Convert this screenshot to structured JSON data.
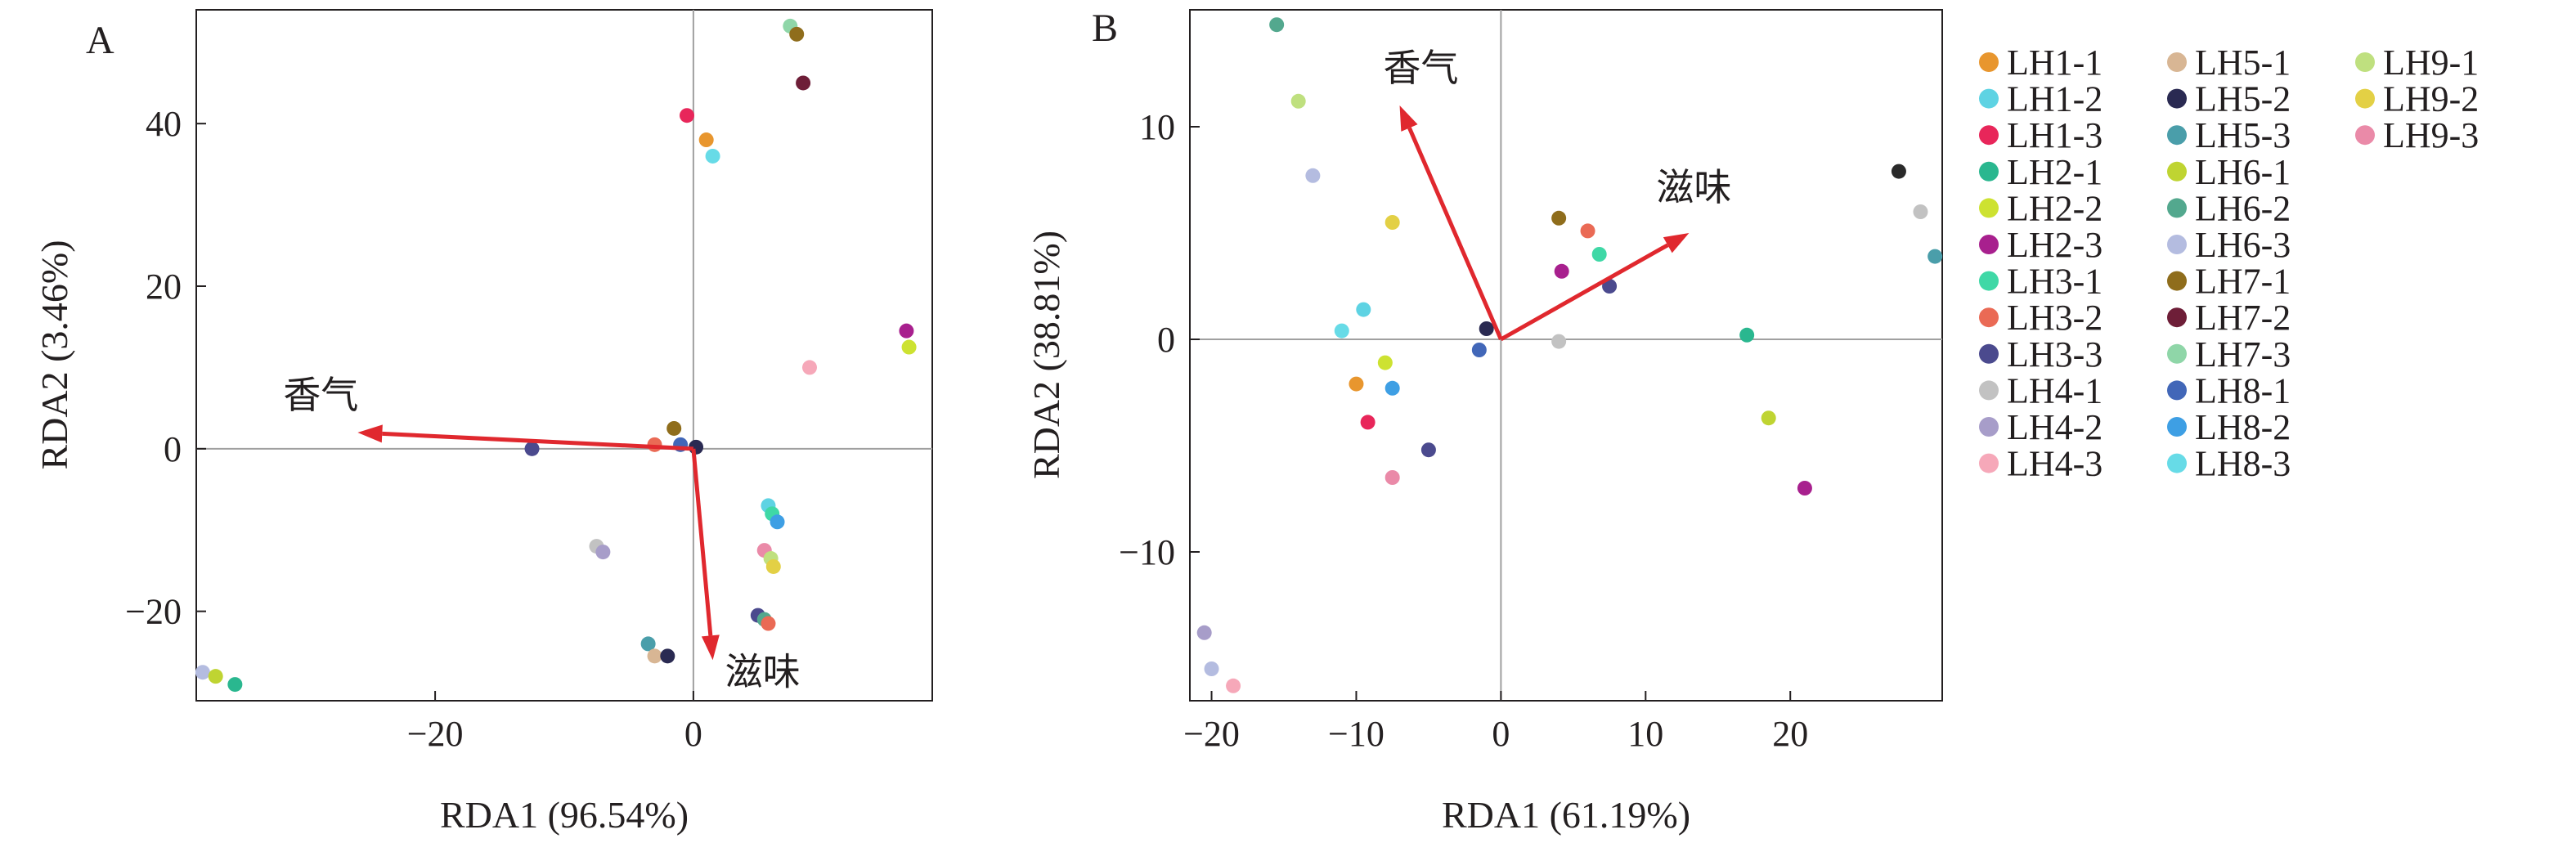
{
  "legend": {
    "items": [
      {
        "label": "LH1-1",
        "color": "#e8962e"
      },
      {
        "label": "LH1-2",
        "color": "#5ed3e3"
      },
      {
        "label": "LH1-3",
        "color": "#e8265a"
      },
      {
        "label": "LH2-1",
        "color": "#2ab78f"
      },
      {
        "label": "LH2-2",
        "color": "#cde231"
      },
      {
        "label": "LH2-3",
        "color": "#a8208e"
      },
      {
        "label": "LH3-1",
        "color": "#3fd8a6"
      },
      {
        "label": "LH3-2",
        "color": "#ea6a55"
      },
      {
        "label": "LH3-3",
        "color": "#4b4a8e"
      },
      {
        "label": "LH4-1",
        "color": "#c2c2c2"
      },
      {
        "label": "LH4-2",
        "color": "#a79dc9"
      },
      {
        "label": "LH4-3",
        "color": "#f6a8b9"
      },
      {
        "label": "LH5-1",
        "color": "#d8b694"
      },
      {
        "label": "LH5-2",
        "color": "#2a2a52"
      },
      {
        "label": "LH5-3",
        "color": "#4a9eaa"
      },
      {
        "label": "LH6-1",
        "color": "#bfd432"
      },
      {
        "label": "LH6-2",
        "color": "#53a88e"
      },
      {
        "label": "LH6-3",
        "color": "#b4bce0"
      },
      {
        "label": "LH7-1",
        "color": "#8f6d1c"
      },
      {
        "label": "LH7-2",
        "color": "#6e1e38"
      },
      {
        "label": "LH7-3",
        "color": "#8fd6a8"
      },
      {
        "label": "LH8-1",
        "color": "#4267b8"
      },
      {
        "label": "LH8-2",
        "color": "#3e9fe4"
      },
      {
        "label": "LH8-3",
        "color": "#67dbe7"
      },
      {
        "label": "LH9-1",
        "color": "#bfe07f"
      },
      {
        "label": "LH9-2",
        "color": "#e3d045"
      },
      {
        "label": "LH9-3",
        "color": "#ea8aa8"
      }
    ]
  },
  "chart_data": [
    {
      "type": "scatter",
      "panel_label": "A",
      "xlabel": "RDA1 (96.54%)",
      "ylabel": "RDA2 (3.46%)",
      "xlim": [
        -38.5,
        18.5
      ],
      "ylim": [
        -31,
        54
      ],
      "xticks": [
        -20,
        0
      ],
      "xtick_labels": [
        "−20",
        "0"
      ],
      "yticks": [
        -20,
        0,
        20,
        40
      ],
      "ytick_labels": [
        "−20",
        "0",
        "20",
        "40"
      ],
      "vectors": [
        {
          "label": "香气",
          "x": -26,
          "y": 2
        },
        {
          "label": "滋味",
          "x": 1.5,
          "y": -26
        }
      ],
      "points": [
        {
          "x": 7.5,
          "y": 52,
          "color": "#8fd6a8"
        },
        {
          "x": 8.0,
          "y": 51,
          "color": "#8f6d1c"
        },
        {
          "x": 8.5,
          "y": 45,
          "color": "#6e1e38"
        },
        {
          "x": -0.5,
          "y": 41,
          "color": "#e8265a"
        },
        {
          "x": 1.0,
          "y": 38,
          "color": "#e8962e"
        },
        {
          "x": 1.5,
          "y": 36,
          "color": "#67dbe7"
        },
        {
          "x": 16.5,
          "y": 14.5,
          "color": "#a8208e"
        },
        {
          "x": 16.7,
          "y": 12.5,
          "color": "#cde231"
        },
        {
          "x": 9.0,
          "y": 10,
          "color": "#f6a8b9"
        },
        {
          "x": -1.5,
          "y": 2.5,
          "color": "#8f6d1c"
        },
        {
          "x": -12.5,
          "y": 0,
          "color": "#4b4a8e"
        },
        {
          "x": -3.0,
          "y": 0.5,
          "color": "#ea6a55"
        },
        {
          "x": -1.0,
          "y": 0.5,
          "color": "#4267b8"
        },
        {
          "x": 0.2,
          "y": 0.2,
          "color": "#2a2a52"
        },
        {
          "x": 5.8,
          "y": -7,
          "color": "#5ed3e3"
        },
        {
          "x": 6.1,
          "y": -8,
          "color": "#3fd8a6"
        },
        {
          "x": 6.5,
          "y": -9,
          "color": "#3e9fe4"
        },
        {
          "x": 5.5,
          "y": -12.5,
          "color": "#ea8aa8"
        },
        {
          "x": 6.0,
          "y": -13.5,
          "color": "#bfe07f"
        },
        {
          "x": 6.2,
          "y": -14.5,
          "color": "#e3d045"
        },
        {
          "x": -7.5,
          "y": -12,
          "color": "#c2c2c2"
        },
        {
          "x": -7.0,
          "y": -12.7,
          "color": "#a79dc9"
        },
        {
          "x": 5.0,
          "y": -20.5,
          "color": "#4b4a8e"
        },
        {
          "x": 5.5,
          "y": -21,
          "color": "#53a88e"
        },
        {
          "x": 5.8,
          "y": -21.5,
          "color": "#ea6a55"
        },
        {
          "x": -3.5,
          "y": -24,
          "color": "#4a9eaa"
        },
        {
          "x": -3.0,
          "y": -25.5,
          "color": "#d8b694"
        },
        {
          "x": -2.0,
          "y": -25.5,
          "color": "#2a2a52"
        },
        {
          "x": -38.0,
          "y": -27.5,
          "color": "#b4bce0"
        },
        {
          "x": -37.0,
          "y": -28,
          "color": "#bfd432"
        },
        {
          "x": -35.5,
          "y": -29,
          "color": "#2ab78f"
        }
      ]
    },
    {
      "type": "scatter",
      "panel_label": "B",
      "xlabel": "RDA1 (61.19%)",
      "ylabel": "RDA2 (38.81%)",
      "xlim": [
        -21.5,
        30.5
      ],
      "ylim": [
        -17,
        15.5
      ],
      "xticks": [
        -20,
        -10,
        0,
        10,
        20
      ],
      "xtick_labels": [
        "−20",
        "−10",
        "0",
        "10",
        "20"
      ],
      "yticks": [
        -10,
        0,
        10
      ],
      "ytick_labels": [
        "−10",
        "0",
        "10"
      ],
      "vectors": [
        {
          "label": "香气",
          "x": -7,
          "y": 11
        },
        {
          "label": "滋味",
          "x": 13,
          "y": 5
        }
      ],
      "points": [
        {
          "x": -15.5,
          "y": 14.8,
          "color": "#53a88e"
        },
        {
          "x": -14.0,
          "y": 11.2,
          "color": "#bfe07f"
        },
        {
          "x": -13.0,
          "y": 7.7,
          "color": "#b4bce0"
        },
        {
          "x": -7.5,
          "y": 5.5,
          "color": "#e3d045"
        },
        {
          "x": -9.5,
          "y": 1.4,
          "color": "#5ed3e3"
        },
        {
          "x": -11.0,
          "y": 0.4,
          "color": "#67dbe7"
        },
        {
          "x": -8.0,
          "y": -1.1,
          "color": "#cde231"
        },
        {
          "x": -10.0,
          "y": -2.1,
          "color": "#e8962e"
        },
        {
          "x": -7.5,
          "y": -2.3,
          "color": "#3e9fe4"
        },
        {
          "x": -9.2,
          "y": -3.9,
          "color": "#e8265a"
        },
        {
          "x": -5.0,
          "y": -5.2,
          "color": "#4b4a8e"
        },
        {
          "x": -7.5,
          "y": -6.5,
          "color": "#ea8aa8"
        },
        {
          "x": -1.0,
          "y": 0.5,
          "color": "#2a2a52"
        },
        {
          "x": -1.5,
          "y": -0.5,
          "color": "#4267b8"
        },
        {
          "x": 4.0,
          "y": 5.7,
          "color": "#8f6d1c"
        },
        {
          "x": 6.0,
          "y": 5.1,
          "color": "#ea6a55"
        },
        {
          "x": 6.8,
          "y": 4.0,
          "color": "#3fd8a6"
        },
        {
          "x": 4.2,
          "y": 3.2,
          "color": "#a8208e"
        },
        {
          "x": 7.5,
          "y": 2.5,
          "color": "#4b4a8e"
        },
        {
          "x": 4.0,
          "y": -0.1,
          "color": "#c2c2c2"
        },
        {
          "x": 17.0,
          "y": 0.2,
          "color": "#2ab78f"
        },
        {
          "x": 18.5,
          "y": -3.7,
          "color": "#bfd432"
        },
        {
          "x": 21.0,
          "y": -7.0,
          "color": "#a8208e"
        },
        {
          "x": 27.5,
          "y": 7.9,
          "color": "#2a2a2a"
        },
        {
          "x": 29.0,
          "y": 6.0,
          "color": "#c2c2c2"
        },
        {
          "x": 30.0,
          "y": 3.9,
          "color": "#4a9eaa"
        },
        {
          "x": -20.5,
          "y": -13.8,
          "color": "#a79dc9"
        },
        {
          "x": -20.0,
          "y": -15.5,
          "color": "#b4bce0"
        },
        {
          "x": -18.5,
          "y": -16.3,
          "color": "#f6a8b9"
        }
      ]
    }
  ]
}
